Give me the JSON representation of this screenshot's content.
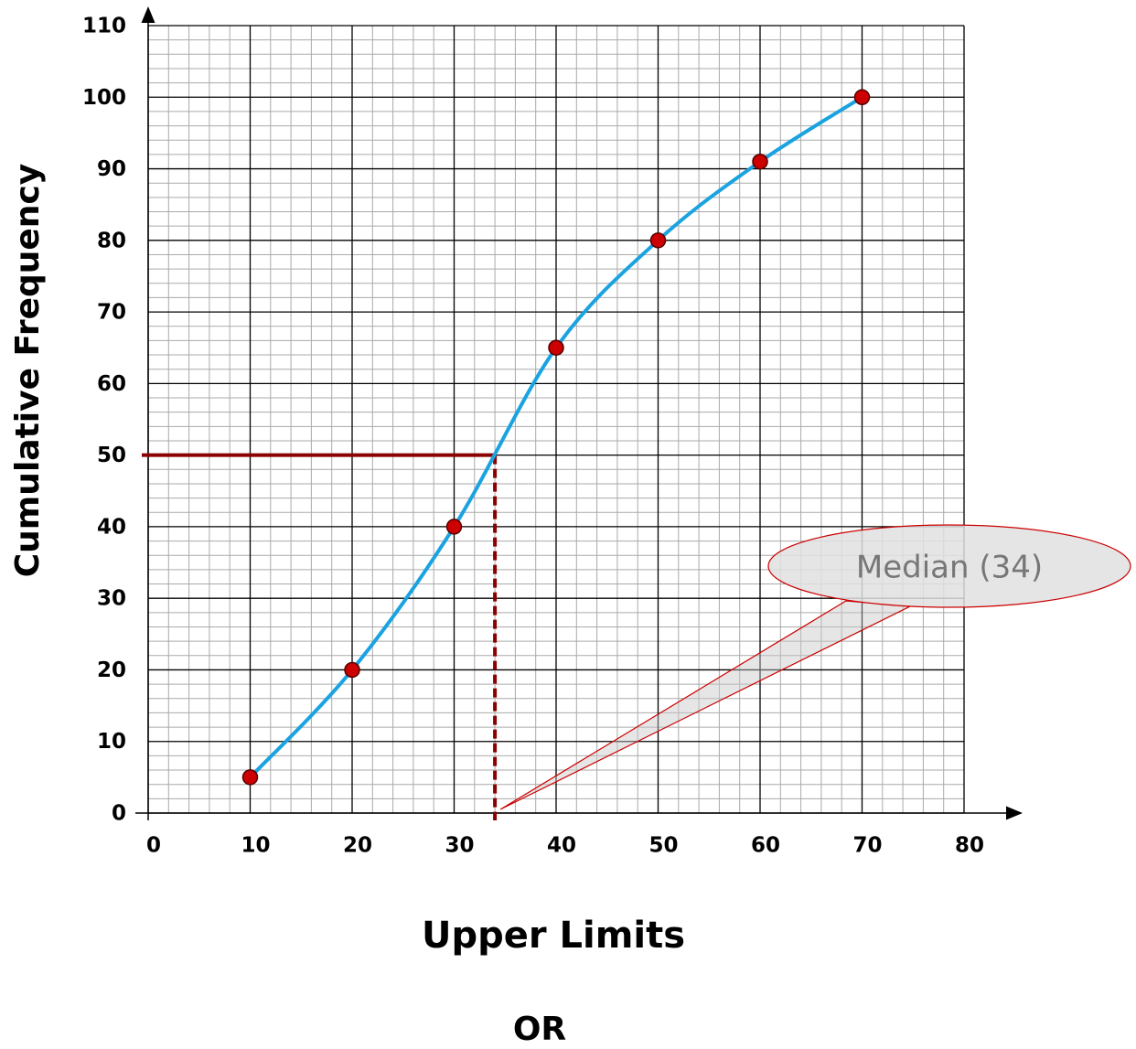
{
  "chart_data": {
    "type": "line",
    "x_label": "Upper Limits",
    "y_label": "Cumulative Frequency",
    "x": [
      10,
      20,
      30,
      40,
      50,
      60,
      70
    ],
    "values": [
      5,
      20,
      40,
      65,
      80,
      91,
      100
    ],
    "color": "#1aa3e0",
    "marker_color": "#cc0000",
    "xlim": [
      0,
      80
    ],
    "xticks": [
      0,
      10,
      20,
      30,
      40,
      50,
      60,
      70,
      80
    ],
    "ylim": [
      0,
      110
    ],
    "yticks": [
      0,
      10,
      20,
      30,
      40,
      50,
      60,
      70,
      80,
      90,
      100,
      110
    ],
    "grid": true,
    "median": {
      "x": 34,
      "y": 50,
      "label": "Median (34)",
      "color": "#8b0000"
    },
    "footer": "OR"
  }
}
